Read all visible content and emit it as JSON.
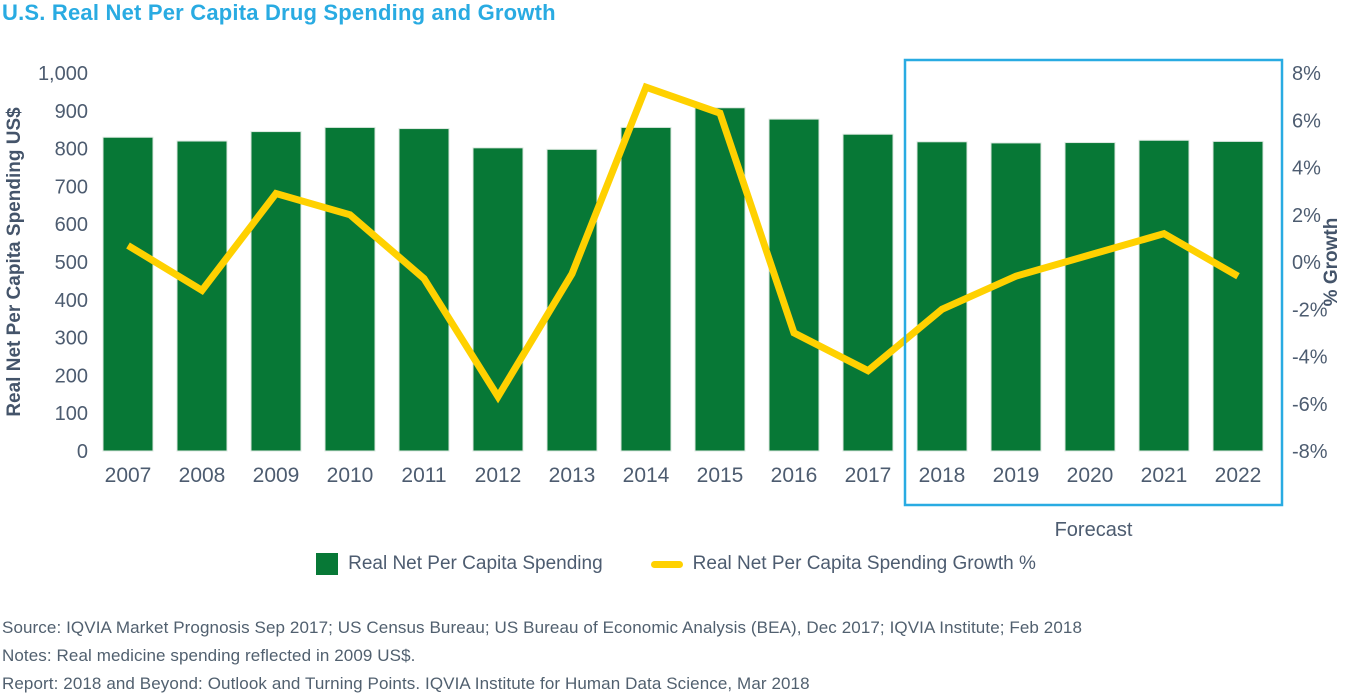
{
  "title": "U.S. Real Net Per Capita Drug Spending and Growth",
  "chart_data": {
    "type": "bar+line combo",
    "categories": [
      "2007",
      "2008",
      "2009",
      "2010",
      "2011",
      "2012",
      "2013",
      "2014",
      "2015",
      "2016",
      "2017",
      "2018",
      "2019",
      "2020",
      "2021",
      "2022"
    ],
    "series": [
      {
        "name": "Real Net Per Capita Spending",
        "type": "bar",
        "axis": "left",
        "color": "#077836",
        "values": [
          830,
          820,
          845,
          856,
          853,
          802,
          798,
          856,
          908,
          878,
          838,
          818,
          815,
          816,
          822,
          819
        ]
      },
      {
        "name": "Real Net Per Capita Spending Growth %",
        "type": "line",
        "axis": "right",
        "color": "#FFD100",
        "values": [
          0.7,
          -1.2,
          2.9,
          2.0,
          -0.7,
          -5.7,
          -0.5,
          7.4,
          6.3,
          -3.0,
          -4.6,
          -2.0,
          -0.6,
          0.3,
          1.2,
          -0.6
        ]
      }
    ],
    "left_axis": {
      "label": "Real Net Per Capita Spending US$",
      "min": 0,
      "max": 1000,
      "step": 100
    },
    "right_axis": {
      "label": "% Growth",
      "min": -8,
      "max": 8,
      "step": 2,
      "suffix": "%"
    },
    "grid": "off",
    "legend_position": "bottom",
    "forecast": {
      "label": "Forecast",
      "start_category": "2018",
      "end_category": "2022",
      "box_color": "#29ABE2"
    }
  },
  "legend": [
    {
      "label": "Real Net Per Capita Spending",
      "color": "#077836",
      "marker": "square"
    },
    {
      "label": "Real Net Per Capita Spending Growth %",
      "color": "#FFD100",
      "marker": "dash"
    }
  ],
  "footer": {
    "source": "Source: IQVIA Market Prognosis Sep 2017; US Census Bureau; US Bureau of Economic Analysis (BEA), Dec 2017; IQVIA Institute; Feb 2018",
    "notes": "Notes: Real medicine spending reflected in 2009 US$.",
    "report": "Report: 2018 and Beyond: Outlook and Turning Points. IQVIA Institute for Human Data Science, Mar 2018"
  },
  "colors": {
    "title": "#29ABE2",
    "bar": "#077836",
    "line": "#FFD100",
    "axis_text": "#4D5C70",
    "forecast_box": "#29ABE2"
  }
}
